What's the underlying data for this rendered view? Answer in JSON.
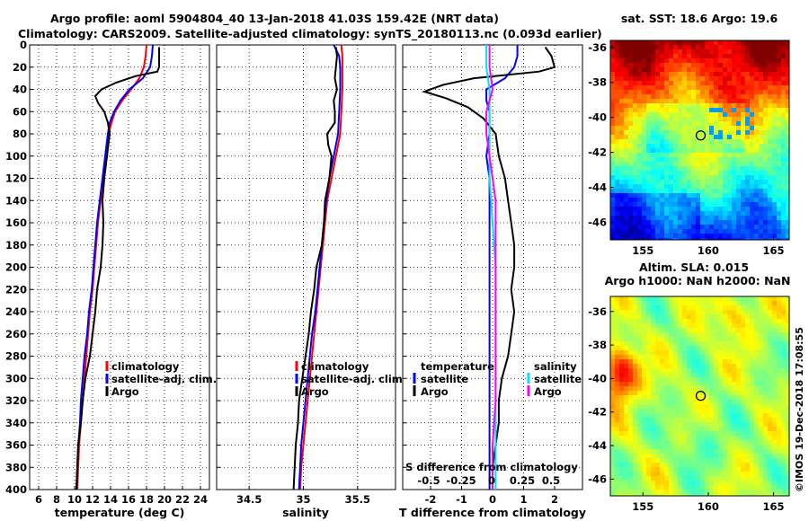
{
  "header": {
    "line1": "Argo profile: aoml 5904804_40 13-Jan-2018 41.03S 159.42E (NRT data)",
    "line2": "Climatology: CARS2009. Satellite-adjusted climatology: synTS_20180113.nc (0.093d earlier)"
  },
  "colors": {
    "climatology": "#ff0000",
    "satellite": "#0000ff",
    "argo": "#000000",
    "salinity_satellite": "#00e0ff",
    "salinity_argo": "#ff00ff",
    "cursor": "#000000"
  },
  "depth_ticks": [
    "0",
    "20",
    "40",
    "60",
    "80",
    "100",
    "120",
    "140",
    "160",
    "180",
    "200",
    "220",
    "240",
    "260",
    "280",
    "300",
    "320",
    "340",
    "360",
    "380",
    "400"
  ],
  "chart_data": [
    {
      "type": "line",
      "name": "temperature",
      "xlabel": "temperature (deg C)",
      "ylabel": "depth",
      "xlim": [
        5,
        25
      ],
      "ylim": [
        400,
        0
      ],
      "grid": true,
      "xticks": [
        6,
        8,
        10,
        12,
        14,
        16,
        18,
        20,
        22,
        24
      ],
      "legend": [
        "climatology",
        "satellite-adj. clim.",
        "Argo"
      ],
      "legend_position": "bottom-right",
      "series": [
        {
          "name": "climatology",
          "color": "climatology",
          "points": [
            [
              18.0,
              0
            ],
            [
              17.9,
              10
            ],
            [
              17.7,
              20
            ],
            [
              17.2,
              30
            ],
            [
              16.3,
              40
            ],
            [
              15.3,
              50
            ],
            [
              14.5,
              60
            ],
            [
              14.1,
              70
            ],
            [
              13.8,
              80
            ],
            [
              13.6,
              100
            ],
            [
              13.2,
              120
            ],
            [
              12.9,
              140
            ],
            [
              12.6,
              160
            ],
            [
              12.4,
              180
            ],
            [
              12.2,
              200
            ],
            [
              12.0,
              220
            ],
            [
              11.7,
              240
            ],
            [
              11.5,
              260
            ],
            [
              11.3,
              280
            ],
            [
              11.1,
              300
            ],
            [
              10.9,
              320
            ],
            [
              10.7,
              340
            ],
            [
              10.5,
              360
            ],
            [
              10.4,
              380
            ],
            [
              10.3,
              400
            ]
          ]
        },
        {
          "name": "satellite-adj. clim.",
          "color": "satellite",
          "points": [
            [
              18.7,
              0
            ],
            [
              18.6,
              10
            ],
            [
              18.4,
              20
            ],
            [
              17.6,
              30
            ],
            [
              16.1,
              40
            ],
            [
              15.1,
              50
            ],
            [
              14.4,
              60
            ],
            [
              13.9,
              70
            ],
            [
              13.7,
              80
            ],
            [
              13.4,
              100
            ],
            [
              13.1,
              120
            ],
            [
              12.8,
              140
            ],
            [
              12.5,
              160
            ],
            [
              12.3,
              180
            ],
            [
              12.1,
              200
            ],
            [
              11.9,
              220
            ],
            [
              11.6,
              240
            ],
            [
              11.4,
              260
            ],
            [
              11.1,
              280
            ],
            [
              10.9,
              300
            ],
            [
              10.7,
              320
            ],
            [
              10.6,
              340
            ],
            [
              10.4,
              360
            ],
            [
              10.3,
              380
            ],
            [
              10.2,
              400
            ]
          ]
        },
        {
          "name": "Argo",
          "color": "argo",
          "points": [
            [
              19.4,
              2
            ],
            [
              19.4,
              10
            ],
            [
              19.4,
              20
            ],
            [
              19.2,
              24
            ],
            [
              16.8,
              28
            ],
            [
              14.6,
              34
            ],
            [
              13.0,
              40
            ],
            [
              12.3,
              46
            ],
            [
              12.6,
              52
            ],
            [
              13.3,
              60
            ],
            [
              13.7,
              70
            ],
            [
              13.9,
              80
            ],
            [
              13.6,
              100
            ],
            [
              13.3,
              120
            ],
            [
              13.1,
              140
            ],
            [
              13.2,
              160
            ],
            [
              13.1,
              180
            ],
            [
              12.9,
              200
            ],
            [
              12.5,
              220
            ],
            [
              12.3,
              240
            ],
            [
              12.0,
              260
            ],
            [
              11.7,
              280
            ],
            [
              11.2,
              300
            ],
            [
              10.9,
              320
            ],
            [
              10.7,
              340
            ],
            [
              10.4,
              360
            ],
            [
              10.3,
              380
            ],
            [
              10.2,
              400
            ]
          ]
        }
      ]
    },
    {
      "type": "line",
      "name": "salinity",
      "xlabel": "salinity",
      "ylabel": "depth",
      "xlim": [
        34.2,
        35.85
      ],
      "ylim": [
        400,
        0
      ],
      "grid": true,
      "xticks": [
        34.5,
        35,
        35.5
      ],
      "xticklabels": [
        "34.5",
        "35",
        "35.5"
      ],
      "legend": [
        "climatology",
        "satellite-adj. clim.",
        "Argo"
      ],
      "legend_position": "bottom-right",
      "series": [
        {
          "name": "climatology",
          "color": "climatology",
          "points": [
            [
              35.35,
              0
            ],
            [
              35.36,
              10
            ],
            [
              35.36,
              20
            ],
            [
              35.36,
              40
            ],
            [
              35.35,
              60
            ],
            [
              35.34,
              80
            ],
            [
              35.3,
              100
            ],
            [
              35.26,
              120
            ],
            [
              35.22,
              140
            ],
            [
              35.2,
              160
            ],
            [
              35.18,
              180
            ],
            [
              35.16,
              200
            ],
            [
              35.14,
              220
            ],
            [
              35.12,
              240
            ],
            [
              35.1,
              260
            ],
            [
              35.08,
              280
            ],
            [
              35.06,
              300
            ],
            [
              35.04,
              320
            ],
            [
              35.02,
              340
            ],
            [
              35.0,
              360
            ],
            [
              34.98,
              380
            ],
            [
              34.97,
              400
            ]
          ]
        },
        {
          "name": "satellite-adj. clim.",
          "color": "satellite",
          "points": [
            [
              35.28,
              0
            ],
            [
              35.33,
              10
            ],
            [
              35.34,
              20
            ],
            [
              35.34,
              40
            ],
            [
              35.33,
              60
            ],
            [
              35.32,
              80
            ],
            [
              35.28,
              100
            ],
            [
              35.24,
              120
            ],
            [
              35.21,
              140
            ],
            [
              35.19,
              160
            ],
            [
              35.17,
              180
            ],
            [
              35.15,
              200
            ],
            [
              35.13,
              220
            ],
            [
              35.11,
              240
            ],
            [
              35.08,
              260
            ],
            [
              35.06,
              280
            ],
            [
              35.04,
              300
            ],
            [
              35.02,
              320
            ],
            [
              35.0,
              340
            ],
            [
              34.98,
              360
            ],
            [
              34.97,
              380
            ],
            [
              34.96,
              400
            ]
          ]
        },
        {
          "name": "Argo",
          "color": "argo",
          "points": [
            [
              35.3,
              2
            ],
            [
              35.31,
              10
            ],
            [
              35.3,
              20
            ],
            [
              35.29,
              30
            ],
            [
              35.31,
              40
            ],
            [
              35.28,
              50
            ],
            [
              35.29,
              60
            ],
            [
              35.29,
              70
            ],
            [
              35.22,
              80
            ],
            [
              35.23,
              90
            ],
            [
              35.26,
              100
            ],
            [
              35.24,
              120
            ],
            [
              35.2,
              140
            ],
            [
              35.19,
              160
            ],
            [
              35.17,
              180
            ],
            [
              35.12,
              200
            ],
            [
              35.1,
              220
            ],
            [
              35.07,
              240
            ],
            [
              35.05,
              260
            ],
            [
              35.02,
              280
            ],
            [
              34.99,
              300
            ],
            [
              34.96,
              320
            ],
            [
              34.95,
              340
            ],
            [
              34.93,
              360
            ],
            [
              34.92,
              380
            ],
            [
              34.91,
              400
            ]
          ]
        }
      ]
    },
    {
      "type": "line",
      "name": "difference",
      "xlabel": "T difference from climatology",
      "xlabel_top": "S difference from climatology",
      "ylabel": "depth",
      "xlim": [
        -2.9,
        2.9
      ],
      "ylim": [
        400,
        0
      ],
      "grid": true,
      "xticks": [
        -2,
        -1,
        0,
        1,
        2
      ],
      "top_ticks": [
        "-0.5",
        "-0.25",
        "0",
        "0.25",
        "0.5"
      ],
      "legend_temperature": {
        "title": "temperature",
        "items": [
          "satellite",
          "Argo"
        ]
      },
      "legend_salinity": {
        "title": "salinity",
        "items": [
          "satellite",
          "Argo"
        ]
      },
      "series": [
        {
          "name": "T satellite",
          "color": "satellite",
          "points": [
            [
              0.8,
              0
            ],
            [
              0.8,
              10
            ],
            [
              0.7,
              20
            ],
            [
              0.4,
              30
            ],
            [
              -0.2,
              40
            ],
            [
              -0.2,
              50
            ],
            [
              -0.1,
              60
            ],
            [
              -0.1,
              80
            ],
            [
              -0.2,
              100
            ],
            [
              -0.1,
              120
            ],
            [
              -0.1,
              140
            ],
            [
              -0.1,
              160
            ],
            [
              -0.1,
              200
            ],
            [
              -0.1,
              240
            ],
            [
              -0.1,
              280
            ],
            [
              -0.1,
              320
            ],
            [
              -0.1,
              360
            ],
            [
              -0.1,
              400
            ]
          ]
        },
        {
          "name": "T Argo",
          "color": "argo",
          "points": [
            [
              1.7,
              2
            ],
            [
              1.9,
              10
            ],
            [
              2.0,
              20
            ],
            [
              1.5,
              24
            ],
            [
              -0.6,
              30
            ],
            [
              -1.6,
              36
            ],
            [
              -2.2,
              42
            ],
            [
              -1.5,
              48
            ],
            [
              -0.8,
              56
            ],
            [
              -0.3,
              66
            ],
            [
              0.1,
              80
            ],
            [
              0.2,
              100
            ],
            [
              0.4,
              120
            ],
            [
              0.5,
              140
            ],
            [
              0.6,
              160
            ],
            [
              0.7,
              180
            ],
            [
              0.7,
              200
            ],
            [
              0.6,
              220
            ],
            [
              0.7,
              240
            ],
            [
              0.6,
              260
            ],
            [
              0.5,
              280
            ],
            [
              0.3,
              300
            ],
            [
              0.2,
              320
            ],
            [
              0.2,
              340
            ],
            [
              0.1,
              360
            ],
            [
              0.0,
              380
            ],
            [
              0.0,
              400
            ]
          ]
        },
        {
          "name": "S satellite",
          "color": "salinity_satellite",
          "points": [
            [
              -0.2,
              0
            ],
            [
              -0.2,
              20
            ],
            [
              -0.1,
              40
            ],
            [
              -0.1,
              80
            ],
            [
              -0.1,
              120
            ],
            [
              0.0,
              160
            ],
            [
              0.1,
              200
            ],
            [
              0.1,
              240
            ],
            [
              0.1,
              280
            ],
            [
              0.1,
              320
            ],
            [
              0.1,
              360
            ],
            [
              0.1,
              400
            ]
          ]
        },
        {
          "name": "S Argo",
          "color": "salinity_argo",
          "points": [
            [
              -0.1,
              0
            ],
            [
              -0.1,
              20
            ],
            [
              0.0,
              40
            ],
            [
              -0.2,
              60
            ],
            [
              -0.2,
              80
            ],
            [
              -0.1,
              100
            ],
            [
              0.0,
              120
            ],
            [
              0.1,
              140
            ],
            [
              0.1,
              160
            ],
            [
              0.1,
              200
            ],
            [
              0.1,
              240
            ],
            [
              0.1,
              280
            ],
            [
              0.1,
              320
            ],
            [
              0.0,
              360
            ],
            [
              0.0,
              400
            ]
          ]
        }
      ]
    },
    {
      "type": "heatmap",
      "name": "sst_map",
      "title": "sat. SST: 18.6 Argo: 19.6",
      "xlim": [
        152.5,
        166.2
      ],
      "ylim": [
        -47,
        -35.6
      ],
      "xticks": [
        "155",
        "160",
        "165"
      ],
      "yticks": [
        "-36",
        "-38",
        "-40",
        "-42",
        "-44",
        "-46"
      ],
      "marker": [
        159.42,
        -41.03
      ]
    },
    {
      "type": "heatmap",
      "name": "sla_map",
      "title": "Altim. SLA: 0.015",
      "subtitle": "Argo h1000: NaN h2000: NaN",
      "xlim": [
        152.5,
        166.2
      ],
      "ylim": [
        -47,
        -35.1
      ],
      "xticks": [
        "155",
        "160",
        "165"
      ],
      "yticks": [
        "-36",
        "-38",
        "-40",
        "-42",
        "-44",
        "-46"
      ],
      "marker": [
        159.42,
        -41.03
      ]
    }
  ],
  "credit": "©IMOS 19-Dec-2018 17:08:55"
}
